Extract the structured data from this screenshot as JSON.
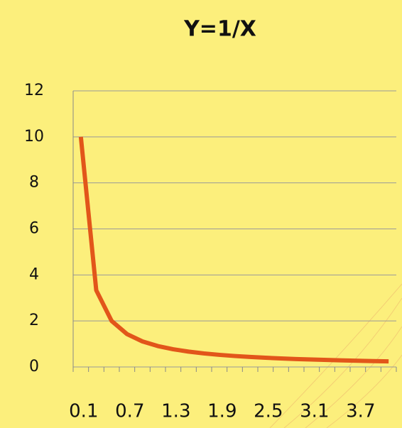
{
  "chart_data": {
    "type": "line",
    "title": "Y=1/X",
    "categories": [
      "0.1",
      null,
      null,
      "0.7",
      null,
      null,
      "1.3",
      null,
      null,
      "1.9",
      null,
      null,
      "2.5",
      null,
      null,
      "3.1",
      null,
      null,
      "3.7",
      null,
      null
    ],
    "values": [
      10,
      3.333,
      2,
      1.429,
      1.111,
      0.909,
      0.769,
      0.667,
      0.588,
      0.526,
      0.476,
      0.435,
      0.4,
      0.37,
      0.345,
      0.323,
      0.303,
      0.286,
      0.27,
      0.256,
      0.244
    ],
    "color": "#e2561a",
    "ylim": [
      0,
      12
    ],
    "yticks": [
      0,
      2,
      4,
      6,
      8,
      10,
      12
    ],
    "grid": true
  }
}
